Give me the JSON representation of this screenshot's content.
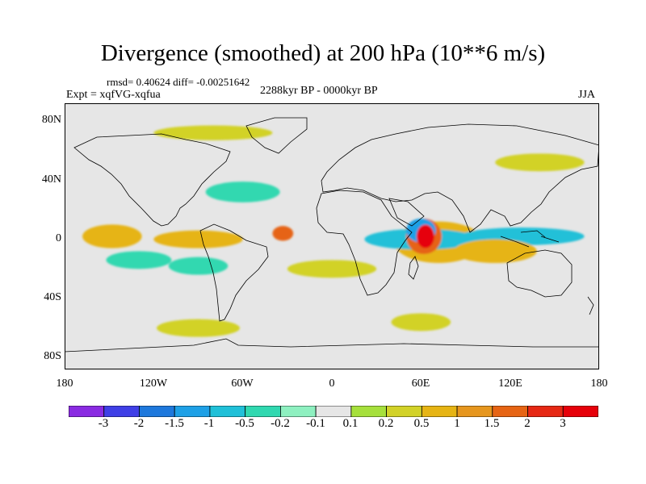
{
  "title": "Divergence (smoothed) at 200 hPa (10**6 m/s)",
  "stats": "rmsd= 0.40624 diff= -0.00251642",
  "expt": "Expt = xqfVG-xqfua",
  "period": "2288kyr BP - 0000kyr BP",
  "season": "JJA",
  "lat_labels": [
    "80N",
    "40N",
    "0",
    "40S",
    "80S"
  ],
  "lon_labels": [
    "180",
    "120W",
    "60W",
    "0",
    "60E",
    "120E",
    "180"
  ],
  "colorbar": {
    "labels": [
      "-3",
      "-2",
      "-1.5",
      "-1",
      "-0.5",
      "-0.2",
      "-0.1",
      "0.1",
      "0.2",
      "0.5",
      "1",
      "1.5",
      "2",
      "3"
    ],
    "colors": [
      "#8a2be2",
      "#3f3fe6",
      "#1e78dc",
      "#1ea0e6",
      "#20c0d8",
      "#30d8b0",
      "#8ef0c0",
      "#e6e6e6",
      "#a6e03c",
      "#d2d228",
      "#e6b414",
      "#e6961e",
      "#e66414",
      "#e62814",
      "#e6000a"
    ]
  },
  "chart_data": {
    "type": "map-filled-contour",
    "title": "Divergence (smoothed) at 200 hPa (10**6 m/s)",
    "variable": "Divergence (smoothed)",
    "level": "200 hPa",
    "units": "10**6 m/s",
    "season": "JJA",
    "lon_range": [
      -180,
      180
    ],
    "lat_range": [
      -90,
      90
    ],
    "contour_levels": [
      -3,
      -2,
      -1.5,
      -1,
      -0.5,
      -0.2,
      -0.1,
      0.1,
      0.2,
      0.5,
      1,
      1.5,
      2,
      3
    ],
    "features": [
      {
        "lon": 63,
        "lat": 0,
        "rx": 6,
        "ry": 8,
        "value": 3.0
      },
      {
        "lon": 62,
        "lat": 0,
        "rx": 12,
        "ry": 12,
        "value": 1.5
      },
      {
        "lon": 72,
        "lat": -4,
        "rx": 30,
        "ry": 14,
        "value": 0.5
      },
      {
        "lon": 110,
        "lat": -10,
        "rx": 28,
        "ry": 8,
        "value": 0.5
      },
      {
        "lon": 60,
        "lat": 4,
        "rx": 10,
        "ry": 8,
        "value": -1.5
      },
      {
        "lon": 60,
        "lat": -2,
        "rx": 38,
        "ry": 7,
        "value": -1.0
      },
      {
        "lon": 128,
        "lat": 0,
        "rx": 42,
        "ry": 6,
        "value": -1.0
      },
      {
        "lon": -33,
        "lat": 2,
        "rx": 7,
        "ry": 5,
        "value": 1.5
      },
      {
        "lon": -148,
        "lat": 0,
        "rx": 20,
        "ry": 8,
        "value": 0.5
      },
      {
        "lon": -90,
        "lat": -2,
        "rx": 30,
        "ry": 6,
        "value": 0.5
      },
      {
        "lon": -60,
        "lat": 30,
        "rx": 25,
        "ry": 7,
        "value": -0.5
      },
      {
        "lon": -130,
        "lat": -16,
        "rx": 22,
        "ry": 6,
        "value": -0.5
      },
      {
        "lon": -90,
        "lat": -20,
        "rx": 20,
        "ry": 6,
        "value": -0.5
      },
      {
        "lon": 0,
        "lat": -22,
        "rx": 30,
        "ry": 6,
        "value": 0.2
      },
      {
        "lon": -80,
        "lat": 70,
        "rx": 40,
        "ry": 5,
        "value": 0.2
      },
      {
        "lon": 140,
        "lat": 50,
        "rx": 30,
        "ry": 6,
        "value": 0.2
      },
      {
        "lon": -90,
        "lat": -62,
        "rx": 28,
        "ry": 6,
        "value": 0.2
      },
      {
        "lon": 60,
        "lat": -58,
        "rx": 20,
        "ry": 6,
        "value": 0.2
      }
    ]
  }
}
